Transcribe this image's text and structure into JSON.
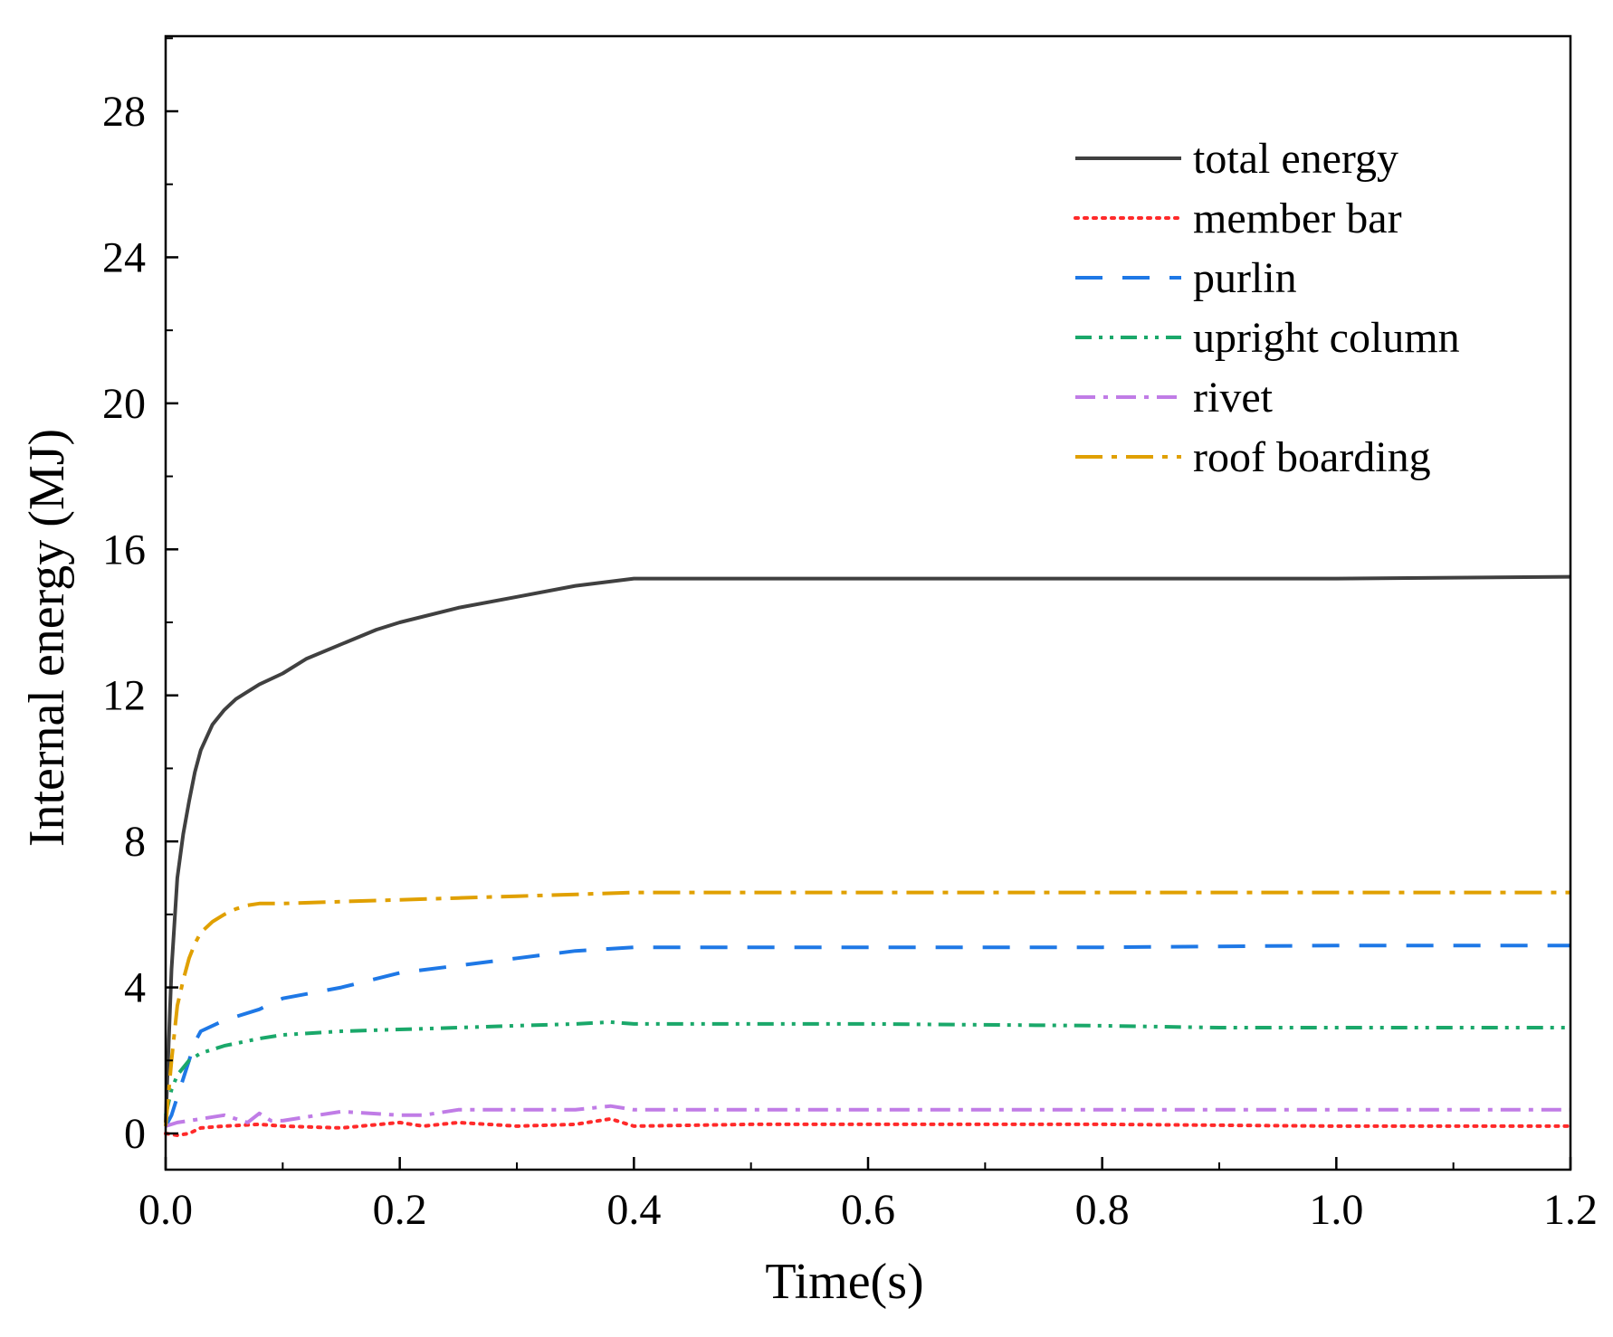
{
  "chart_data": {
    "type": "line",
    "title": "",
    "xlabel": "Time(s)",
    "ylabel": "Internal energy (MJ)",
    "xlim": [
      0,
      1.2
    ],
    "ylim": [
      -1,
      30
    ],
    "xticks": [
      0.0,
      0.2,
      0.4,
      0.6,
      0.8,
      1.0,
      1.2
    ],
    "xtick_labels": [
      "0.0",
      "0.2",
      "0.4",
      "0.6",
      "0.8",
      "1.0",
      "1.2"
    ],
    "yticks": [
      0,
      4,
      8,
      12,
      16,
      20,
      24,
      28
    ],
    "ytick_labels": [
      "0",
      "4",
      "8",
      "12",
      "16",
      "20",
      "24",
      "28"
    ],
    "grid": false,
    "legend_position": "top-right",
    "series": [
      {
        "name": "total energy",
        "color": "#404040",
        "style": "solid",
        "x": [
          0,
          0.005,
          0.01,
          0.015,
          0.02,
          0.025,
          0.03,
          0.04,
          0.05,
          0.06,
          0.07,
          0.08,
          0.1,
          0.12,
          0.15,
          0.18,
          0.2,
          0.25,
          0.3,
          0.35,
          0.4,
          0.45,
          0.6,
          0.8,
          1.0,
          1.2
        ],
        "y": [
          0.3,
          4.5,
          7.0,
          8.2,
          9.1,
          9.9,
          10.5,
          11.2,
          11.6,
          11.9,
          12.1,
          12.3,
          12.6,
          13.0,
          13.4,
          13.8,
          14.0,
          14.4,
          14.7,
          15.0,
          15.2,
          15.2,
          15.2,
          15.2,
          15.2,
          15.25
        ]
      },
      {
        "name": "member bar",
        "color": "#ff2a2a",
        "style": "dotted",
        "x": [
          0,
          0.01,
          0.02,
          0.03,
          0.05,
          0.08,
          0.1,
          0.15,
          0.2,
          0.22,
          0.25,
          0.3,
          0.35,
          0.38,
          0.4,
          0.5,
          0.6,
          0.8,
          1.0,
          1.2
        ],
        "y": [
          0.0,
          -0.05,
          0.0,
          0.15,
          0.2,
          0.25,
          0.2,
          0.15,
          0.3,
          0.2,
          0.3,
          0.2,
          0.25,
          0.4,
          0.2,
          0.25,
          0.25,
          0.25,
          0.2,
          0.2
        ]
      },
      {
        "name": "purlin",
        "color": "#1e78e6",
        "style": "dashed",
        "x": [
          0,
          0.005,
          0.01,
          0.015,
          0.02,
          0.025,
          0.03,
          0.05,
          0.08,
          0.1,
          0.15,
          0.2,
          0.25,
          0.3,
          0.35,
          0.4,
          0.5,
          0.6,
          0.8,
          1.0,
          1.2
        ],
        "y": [
          0.2,
          0.5,
          1.0,
          1.5,
          2.0,
          2.5,
          2.8,
          3.1,
          3.4,
          3.7,
          4.0,
          4.4,
          4.6,
          4.8,
          5.0,
          5.1,
          5.1,
          5.1,
          5.1,
          5.15,
          5.15
        ]
      },
      {
        "name": "upright column",
        "color": "#1aa86a",
        "style": "dash-dot-dot",
        "x": [
          0,
          0.005,
          0.01,
          0.02,
          0.03,
          0.05,
          0.08,
          0.1,
          0.15,
          0.2,
          0.25,
          0.3,
          0.35,
          0.38,
          0.4,
          0.5,
          0.6,
          0.8,
          0.9,
          1.0,
          1.2
        ],
        "y": [
          0.5,
          1.2,
          1.6,
          2.0,
          2.2,
          2.4,
          2.6,
          2.7,
          2.8,
          2.85,
          2.9,
          2.95,
          3.0,
          3.05,
          3.0,
          3.0,
          3.0,
          2.95,
          2.9,
          2.9,
          2.9
        ]
      },
      {
        "name": "rivet",
        "color": "#c07ce6",
        "style": "dash-dot",
        "x": [
          0,
          0.01,
          0.02,
          0.03,
          0.05,
          0.07,
          0.08,
          0.09,
          0.1,
          0.13,
          0.15,
          0.2,
          0.22,
          0.25,
          0.3,
          0.35,
          0.38,
          0.4,
          0.5,
          0.6,
          0.8,
          1.0,
          1.2
        ],
        "y": [
          0.2,
          0.3,
          0.35,
          0.4,
          0.5,
          0.3,
          0.55,
          0.35,
          0.35,
          0.5,
          0.6,
          0.5,
          0.5,
          0.65,
          0.65,
          0.65,
          0.75,
          0.65,
          0.65,
          0.65,
          0.65,
          0.65,
          0.65
        ]
      },
      {
        "name": "roof boarding",
        "color": "#e0a000",
        "style": "long-dash-dot",
        "x": [
          0,
          0.005,
          0.01,
          0.015,
          0.02,
          0.025,
          0.03,
          0.04,
          0.05,
          0.06,
          0.07,
          0.08,
          0.1,
          0.15,
          0.2,
          0.25,
          0.3,
          0.35,
          0.4,
          0.5,
          0.6,
          0.8,
          1.0,
          1.2
        ],
        "y": [
          0.2,
          2.0,
          3.5,
          4.2,
          4.8,
          5.2,
          5.5,
          5.8,
          6.0,
          6.15,
          6.25,
          6.3,
          6.3,
          6.35,
          6.4,
          6.45,
          6.5,
          6.55,
          6.6,
          6.6,
          6.6,
          6.6,
          6.6,
          6.6
        ]
      }
    ]
  }
}
